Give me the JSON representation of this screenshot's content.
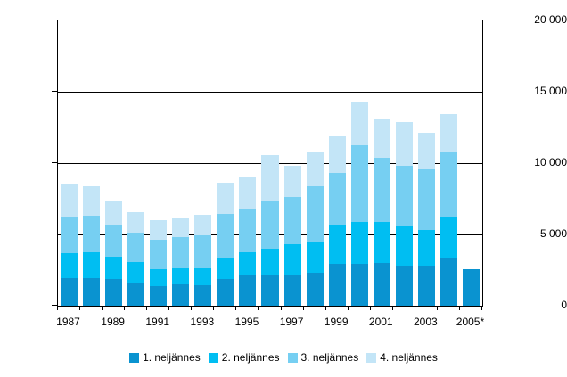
{
  "chart_data": {
    "type": "bar",
    "stacked": true,
    "title": "",
    "xlabel": "",
    "ylabel": "",
    "categories": [
      "1987",
      "1988",
      "1989",
      "1990",
      "1991",
      "1992",
      "1993",
      "1994",
      "1995",
      "1996",
      "1997",
      "1998",
      "1999",
      "2000",
      "2001",
      "2002",
      "2003",
      "2004",
      "2005*"
    ],
    "x_tick_labels": [
      "1987",
      "1989",
      "1991",
      "1993",
      "1995",
      "1997",
      "1999",
      "2001",
      "2003",
      "2005*"
    ],
    "series": [
      {
        "name": "1. neljännes",
        "color": "#0a93d0",
        "values": [
          1950,
          1950,
          1900,
          1600,
          1400,
          1500,
          1450,
          1850,
          2100,
          2150,
          2200,
          2300,
          2950,
          2950,
          3000,
          2800,
          2800,
          3300,
          2550
        ]
      },
      {
        "name": "2. neljännes",
        "color": "#00bef2",
        "values": [
          1750,
          1800,
          1550,
          1450,
          1150,
          1150,
          1200,
          1450,
          1650,
          1850,
          2100,
          2150,
          2650,
          2950,
          2900,
          2750,
          2500,
          2950,
          0
        ]
      },
      {
        "name": "3. neljännes",
        "color": "#76cff2",
        "values": [
          2500,
          2550,
          2250,
          2050,
          2050,
          2150,
          2300,
          3150,
          3000,
          3400,
          3350,
          3900,
          3700,
          5350,
          4500,
          4250,
          4250,
          4550,
          0
        ]
      },
      {
        "name": "4. neljännes",
        "color": "#c3e5f7",
        "values": [
          2300,
          2100,
          1700,
          1450,
          1400,
          1350,
          1450,
          2200,
          2250,
          3150,
          2150,
          2450,
          2550,
          3000,
          2700,
          3100,
          2550,
          2650,
          0
        ]
      }
    ],
    "ylim": [
      0,
      20000
    ],
    "y_ticks": [
      0,
      5000,
      10000,
      15000,
      20000
    ],
    "y_tick_labels": [
      "0",
      "5 000",
      "10 000",
      "15 000",
      "20 000"
    ],
    "grid": true,
    "legend_position": "bottom",
    "axis_color": "#000000",
    "background_color": "#ffffff"
  }
}
